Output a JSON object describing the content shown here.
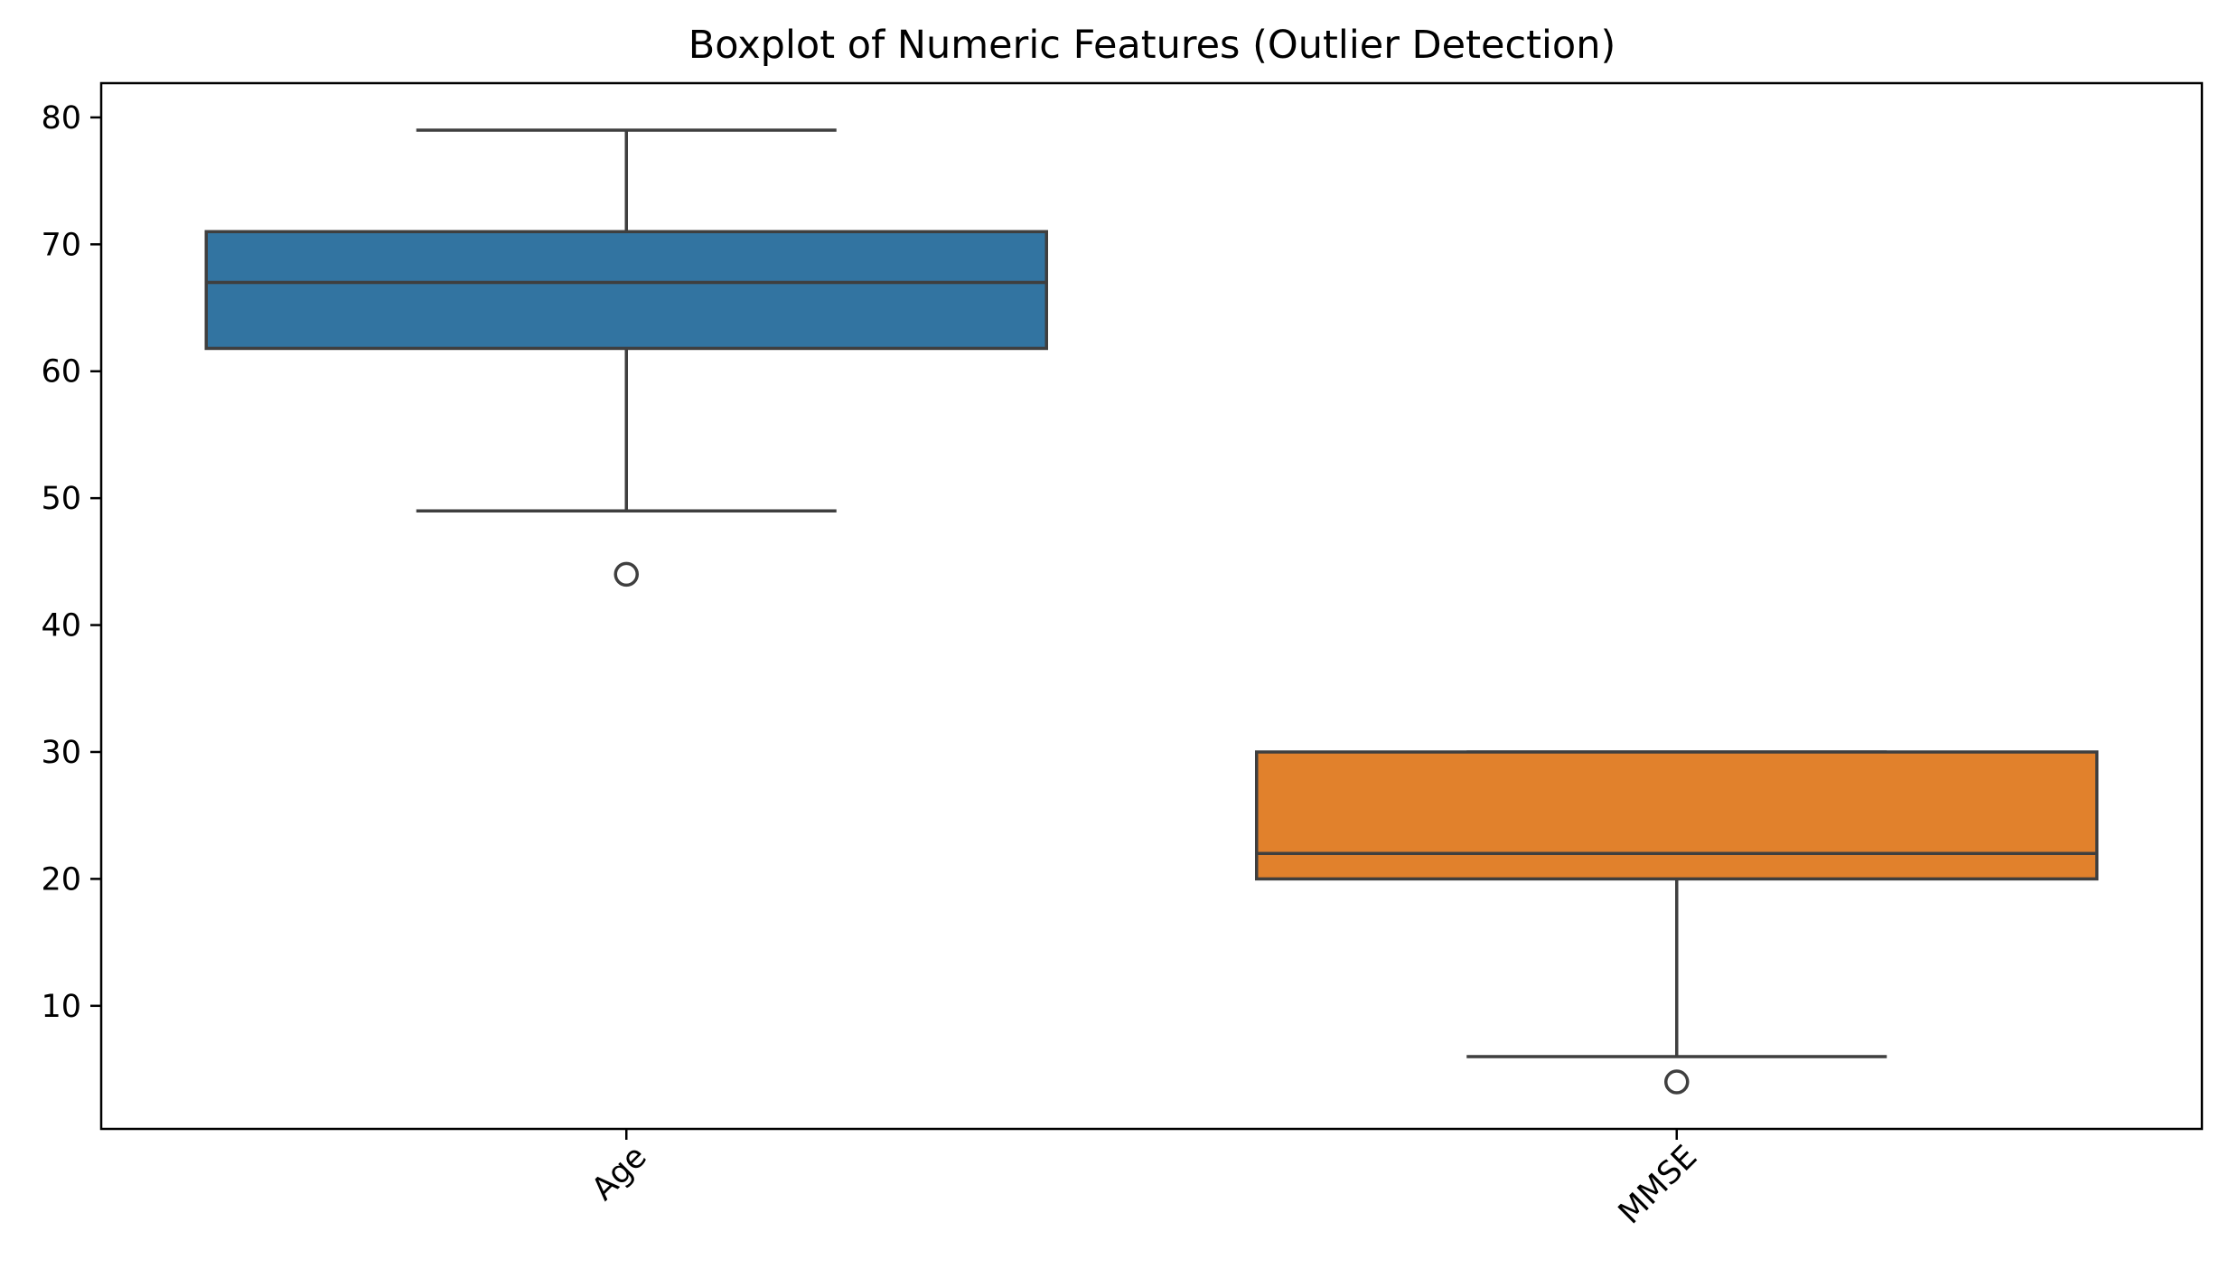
{
  "chart_data": {
    "type": "boxplot",
    "title": "Boxplot of Numeric Features (Outlier Detection)",
    "xlabel": "",
    "ylabel": "",
    "ylim": [
      0.3,
      82.7
    ],
    "yticks": [
      10,
      20,
      30,
      40,
      50,
      60,
      70,
      80
    ],
    "x_tick_rotation_deg": 45,
    "grid": false,
    "legend": "none",
    "categories": [
      "Age",
      "MMSE"
    ],
    "boxes": [
      {
        "category": "Age",
        "whisker_low": 49,
        "q1": 61.8,
        "median": 67,
        "q3": 71,
        "whisker_high": 79,
        "outliers": [
          44
        ],
        "color": "#3274a1"
      },
      {
        "category": "MMSE",
        "whisker_low": 6,
        "q1": 20,
        "median": 22,
        "q3": 30,
        "whisker_high": 30,
        "outliers": [
          4
        ],
        "color": "#e1812c"
      }
    ],
    "line_color": "#3f3f3f"
  }
}
